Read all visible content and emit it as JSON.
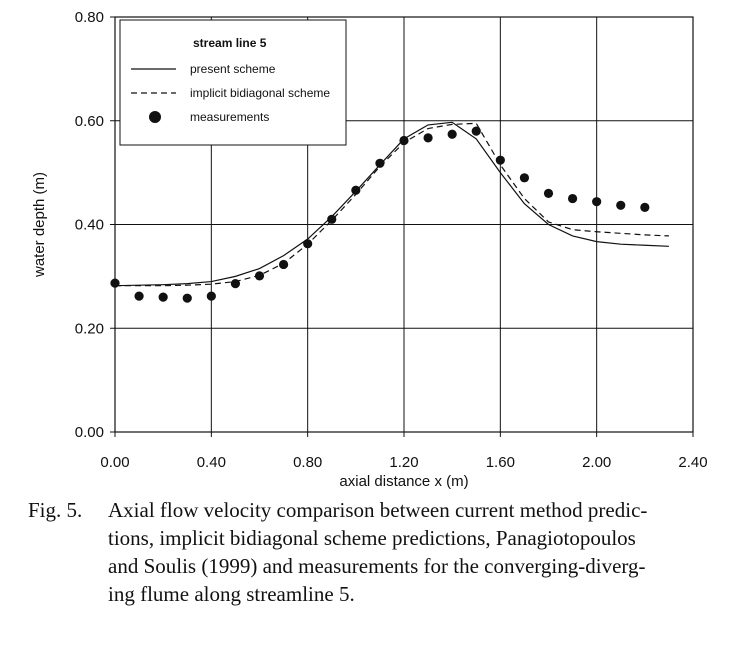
{
  "chart_data": {
    "type": "line",
    "xlabel": "axial distance x (m)",
    "ylabel": "water depth (m)",
    "xlim": [
      0,
      2.4
    ],
    "ylim": [
      0,
      0.8
    ],
    "x_ticks": [
      "0.00",
      "0.40",
      "0.80",
      "1.20",
      "1.60",
      "2.00",
      "2.40"
    ],
    "y_ticks": [
      "0.00",
      "0.20",
      "0.40",
      "0.60",
      "0.80"
    ],
    "grid": true,
    "legend_position": "top-left",
    "legend_title": "stream line 5",
    "series": [
      {
        "name": "present scheme",
        "style": "solid",
        "points": [
          [
            0.0,
            0.282
          ],
          [
            0.1,
            0.283
          ],
          [
            0.2,
            0.284
          ],
          [
            0.3,
            0.286
          ],
          [
            0.4,
            0.29
          ],
          [
            0.5,
            0.3
          ],
          [
            0.6,
            0.315
          ],
          [
            0.7,
            0.34
          ],
          [
            0.8,
            0.372
          ],
          [
            0.9,
            0.415
          ],
          [
            1.0,
            0.464
          ],
          [
            1.1,
            0.515
          ],
          [
            1.2,
            0.565
          ],
          [
            1.3,
            0.592
          ],
          [
            1.4,
            0.597
          ],
          [
            1.5,
            0.565
          ],
          [
            1.6,
            0.5
          ],
          [
            1.7,
            0.44
          ],
          [
            1.8,
            0.4
          ],
          [
            1.9,
            0.378
          ],
          [
            2.0,
            0.367
          ],
          [
            2.1,
            0.362
          ],
          [
            2.2,
            0.36
          ],
          [
            2.3,
            0.358
          ]
        ]
      },
      {
        "name": "implicit bidiagonal scheme",
        "style": "dashed",
        "points": [
          [
            0.0,
            0.282
          ],
          [
            0.1,
            0.282
          ],
          [
            0.2,
            0.282
          ],
          [
            0.3,
            0.283
          ],
          [
            0.4,
            0.285
          ],
          [
            0.5,
            0.29
          ],
          [
            0.6,
            0.302
          ],
          [
            0.7,
            0.325
          ],
          [
            0.8,
            0.362
          ],
          [
            0.9,
            0.408
          ],
          [
            1.0,
            0.458
          ],
          [
            1.1,
            0.512
          ],
          [
            1.2,
            0.558
          ],
          [
            1.3,
            0.585
          ],
          [
            1.4,
            0.593
          ],
          [
            1.5,
            0.595
          ],
          [
            1.6,
            0.515
          ],
          [
            1.7,
            0.45
          ],
          [
            1.8,
            0.405
          ],
          [
            1.9,
            0.39
          ],
          [
            2.0,
            0.386
          ],
          [
            2.1,
            0.383
          ],
          [
            2.2,
            0.38
          ],
          [
            2.3,
            0.378
          ]
        ]
      },
      {
        "name": "measurements",
        "style": "markers",
        "points": [
          [
            0.0,
            0.287
          ],
          [
            0.1,
            0.262
          ],
          [
            0.2,
            0.26
          ],
          [
            0.3,
            0.258
          ],
          [
            0.4,
            0.262
          ],
          [
            0.5,
            0.286
          ],
          [
            0.6,
            0.301
          ],
          [
            0.7,
            0.323
          ],
          [
            0.8,
            0.363
          ],
          [
            0.9,
            0.41
          ],
          [
            1.0,
            0.466
          ],
          [
            1.1,
            0.518
          ],
          [
            1.2,
            0.562
          ],
          [
            1.3,
            0.567
          ],
          [
            1.4,
            0.574
          ],
          [
            1.5,
            0.58
          ],
          [
            1.6,
            0.524
          ],
          [
            1.7,
            0.49
          ],
          [
            1.8,
            0.46
          ],
          [
            1.9,
            0.45
          ],
          [
            2.0,
            0.444
          ],
          [
            2.1,
            0.437
          ],
          [
            2.2,
            0.433
          ]
        ]
      }
    ]
  },
  "caption": {
    "label": "Fig. 5.",
    "lines": [
      "Axial flow velocity comparison between current method predic-",
      "tions, implicit bidiagonal scheme predictions, Panagiotopoulos",
      "and Soulis (1999) and measurements for the converging-diverg-",
      "ing flume along streamline 5."
    ]
  }
}
